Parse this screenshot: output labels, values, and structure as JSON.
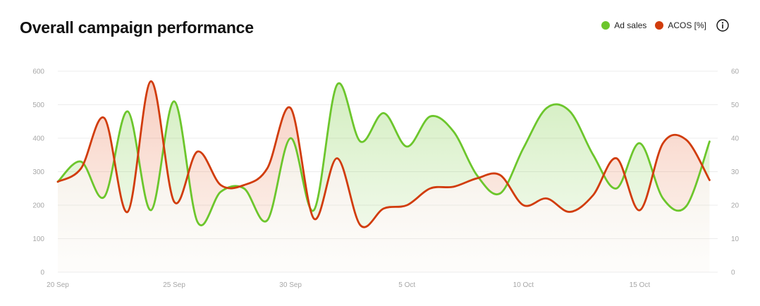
{
  "header": {
    "title": "Overall campaign performance"
  },
  "legend": {
    "items": [
      {
        "label": "Ad sales",
        "color": "#6cc62c"
      },
      {
        "label": "ACOS [%]",
        "color": "#d13c0c"
      }
    ],
    "info_icon": "info-icon"
  },
  "chart_data": {
    "type": "line",
    "title": "Overall campaign performance",
    "x": [
      "20 Sep",
      "21 Sep",
      "22 Sep",
      "23 Sep",
      "24 Sep",
      "25 Sep",
      "26 Sep",
      "27 Sep",
      "28 Sep",
      "29 Sep",
      "30 Sep",
      "1 Oct",
      "2 Oct",
      "3 Oct",
      "4 Oct",
      "5 Oct",
      "6 Oct",
      "7 Oct",
      "8 Oct",
      "9 Oct",
      "10 Oct",
      "11 Oct",
      "12 Oct",
      "13 Oct",
      "14 Oct",
      "15 Oct",
      "16 Oct",
      "17 Oct",
      "18 Oct",
      "19 Oct"
    ],
    "x_tick_labels": [
      "20 Sep",
      "25 Sep",
      "30 Sep",
      "5 Oct",
      "10 Oct",
      "15 Oct"
    ],
    "series": [
      {
        "name": "Ad sales",
        "axis": "left",
        "color": "#6cc62c",
        "values": [
          270,
          330,
          225,
          480,
          185,
          510,
          150,
          240,
          250,
          155,
          400,
          185,
          560,
          390,
          475,
          375,
          465,
          420,
          290,
          235,
          370,
          490,
          480,
          350,
          250,
          385,
          220,
          197,
          390,
          null
        ]
      },
      {
        "name": "ACOS [%]",
        "axis": "right",
        "color": "#d13c0c",
        "values": [
          27,
          31,
          46,
          18,
          57,
          21,
          36,
          26,
          26,
          31,
          49,
          16,
          34,
          14,
          19,
          20,
          25,
          25.5,
          28,
          29,
          20,
          22,
          18,
          23,
          34,
          18.5,
          38.5,
          39.5,
          27.5,
          null
        ]
      }
    ],
    "y_left": {
      "min": 0,
      "max": 600,
      "ticks": [
        0,
        100,
        200,
        300,
        400,
        500,
        600
      ]
    },
    "y_right": {
      "min": 0,
      "max": 60,
      "ticks": [
        0,
        10,
        20,
        30,
        40,
        50,
        60
      ]
    },
    "grid": true,
    "legend_position": "top-right"
  }
}
